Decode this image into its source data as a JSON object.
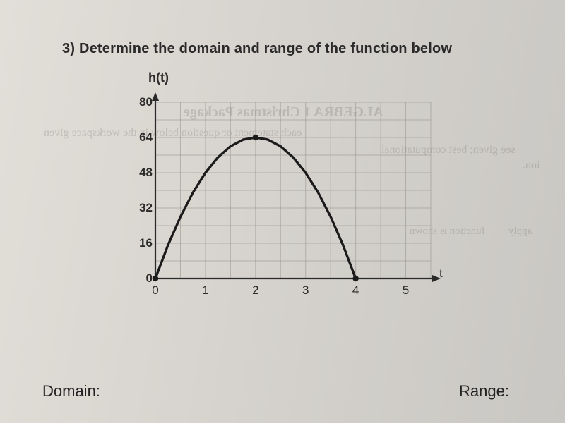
{
  "question": {
    "label": "3) Determine the domain and range of the function below"
  },
  "chart": {
    "type": "line",
    "y_axis_label": "h(t)",
    "x_axis_label": "t",
    "xlim": [
      0,
      5.5
    ],
    "ylim": [
      0,
      80
    ],
    "xticks": [
      0,
      1,
      2,
      3,
      4,
      5
    ],
    "yticks": [
      0,
      16,
      32,
      48,
      64,
      80
    ],
    "x_minor_step": 0.5,
    "y_minor_step": 8,
    "grid_color": "#9a9690",
    "axis_color": "#2a2a2a",
    "axis_width": 2.2,
    "curve_color": "#1b1b1b",
    "curve_width": 3.4,
    "endpoint_radius": 4.2,
    "curve_points": [
      {
        "t": 0.0,
        "h": 0
      },
      {
        "t": 0.25,
        "h": 15
      },
      {
        "t": 0.5,
        "h": 28
      },
      {
        "t": 0.75,
        "h": 39
      },
      {
        "t": 1.0,
        "h": 48
      },
      {
        "t": 1.25,
        "h": 55
      },
      {
        "t": 1.5,
        "h": 60
      },
      {
        "t": 1.75,
        "h": 63
      },
      {
        "t": 2.0,
        "h": 64
      },
      {
        "t": 2.25,
        "h": 63
      },
      {
        "t": 2.5,
        "h": 60
      },
      {
        "t": 2.75,
        "h": 55
      },
      {
        "t": 3.0,
        "h": 48
      },
      {
        "t": 3.25,
        "h": 39
      },
      {
        "t": 3.5,
        "h": 28
      },
      {
        "t": 3.75,
        "h": 15
      },
      {
        "t": 4.0,
        "h": 0
      }
    ],
    "background_color": "transparent",
    "tick_fontsize": 17,
    "label_fontsize": 18
  },
  "answers": {
    "domain_label": "Domain:",
    "range_label": "Range:"
  },
  "ghost_text": {
    "line1": "ALGEBRA 1  Christmas Package",
    "line2": "each statement or question below in the workspace given",
    "line3": "see given; best computational",
    "line4": "function is shown",
    "line5": "ion.",
    "line6": "apply"
  }
}
